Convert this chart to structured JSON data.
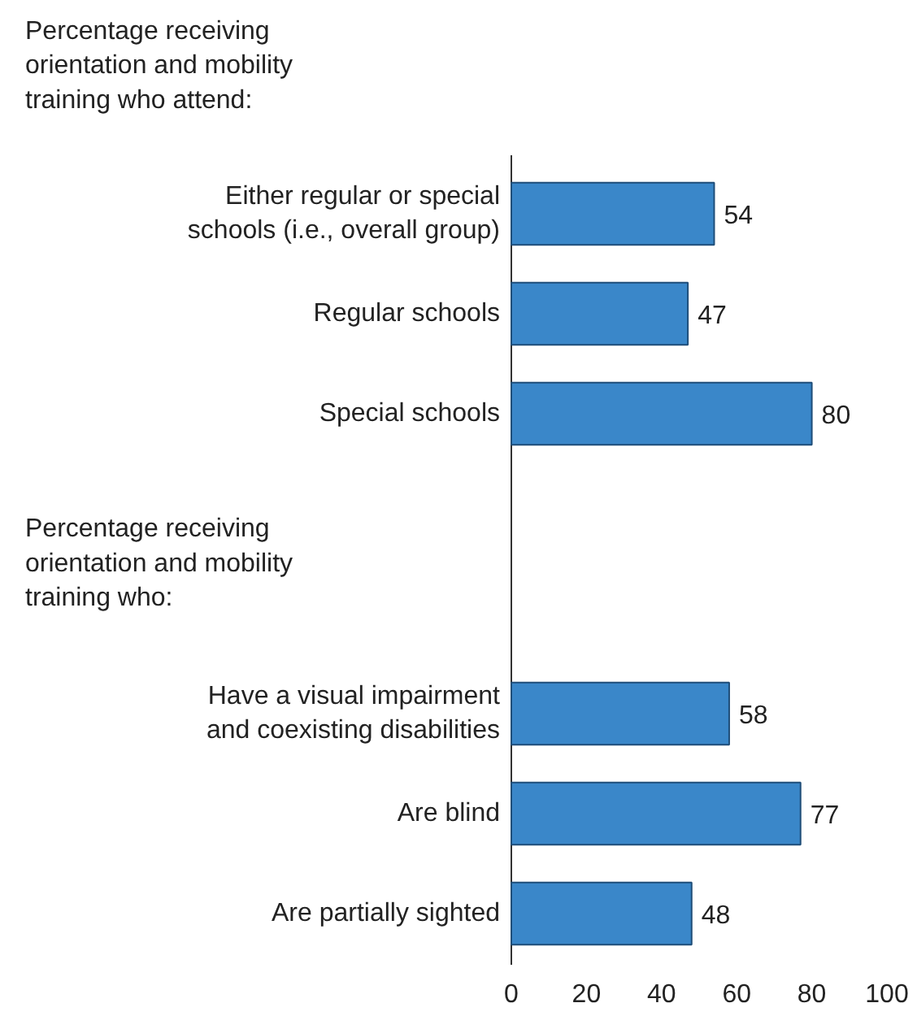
{
  "chart_data": {
    "type": "bar",
    "orientation": "horizontal",
    "categories": [
      "Either regular or special\nschools (i.e., overall group)",
      "Regular schools",
      "Special schools",
      null,
      null,
      "Have a visual impairment\nand coexisting disabilities",
      "Are blind",
      "Are partially sighted"
    ],
    "values": [
      54,
      47,
      80,
      null,
      null,
      58,
      77,
      48
    ],
    "color": "#3a87c9",
    "xlim": [
      0,
      100
    ],
    "xticks": [
      0,
      20,
      40,
      60,
      80,
      100
    ],
    "data_labels": true,
    "grid": false,
    "annotations": [
      "Percentage receiving\norientation and mobility\ntraining who attend:",
      "Percentage receiving\norientation and mobility\ntraining who:"
    ]
  }
}
